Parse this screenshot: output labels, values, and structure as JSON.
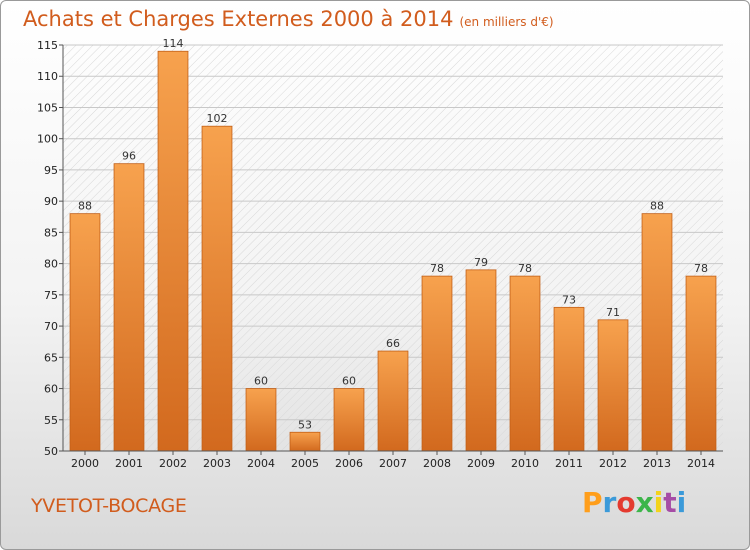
{
  "header": {
    "title": "Achats et Charges Externes 2000 à 2014",
    "unit": "(en milliers d'€)"
  },
  "footer": {
    "place": "YVETOT-BOCAGE"
  },
  "logo": {
    "letters": [
      "P",
      "r",
      "o",
      "x",
      "i",
      "t",
      "i"
    ],
    "colors": [
      "#ff9e1b",
      "#3b9ad9",
      "#e43a2f",
      "#3cb54a",
      "#f3d31c",
      "#a64ca6",
      "#3b9ad9"
    ]
  },
  "colors": {
    "bar_top": "#f7a24e",
    "bar_bottom": "#d2691e",
    "bar_edge": "#c25f16",
    "title": "#d15c1d"
  },
  "chart_data": {
    "type": "bar",
    "categories": [
      "2000",
      "2001",
      "2002",
      "2003",
      "2004",
      "2005",
      "2006",
      "2007",
      "2008",
      "2009",
      "2010",
      "2011",
      "2012",
      "2013",
      "2014"
    ],
    "values": [
      88,
      96,
      114,
      102,
      60,
      53,
      60,
      66,
      78,
      79,
      78,
      73,
      71,
      88,
      78
    ],
    "ylim": [
      50,
      115
    ],
    "yticks": [
      50,
      55,
      60,
      65,
      70,
      75,
      80,
      85,
      90,
      95,
      100,
      105,
      110,
      115
    ],
    "grid": true
  }
}
